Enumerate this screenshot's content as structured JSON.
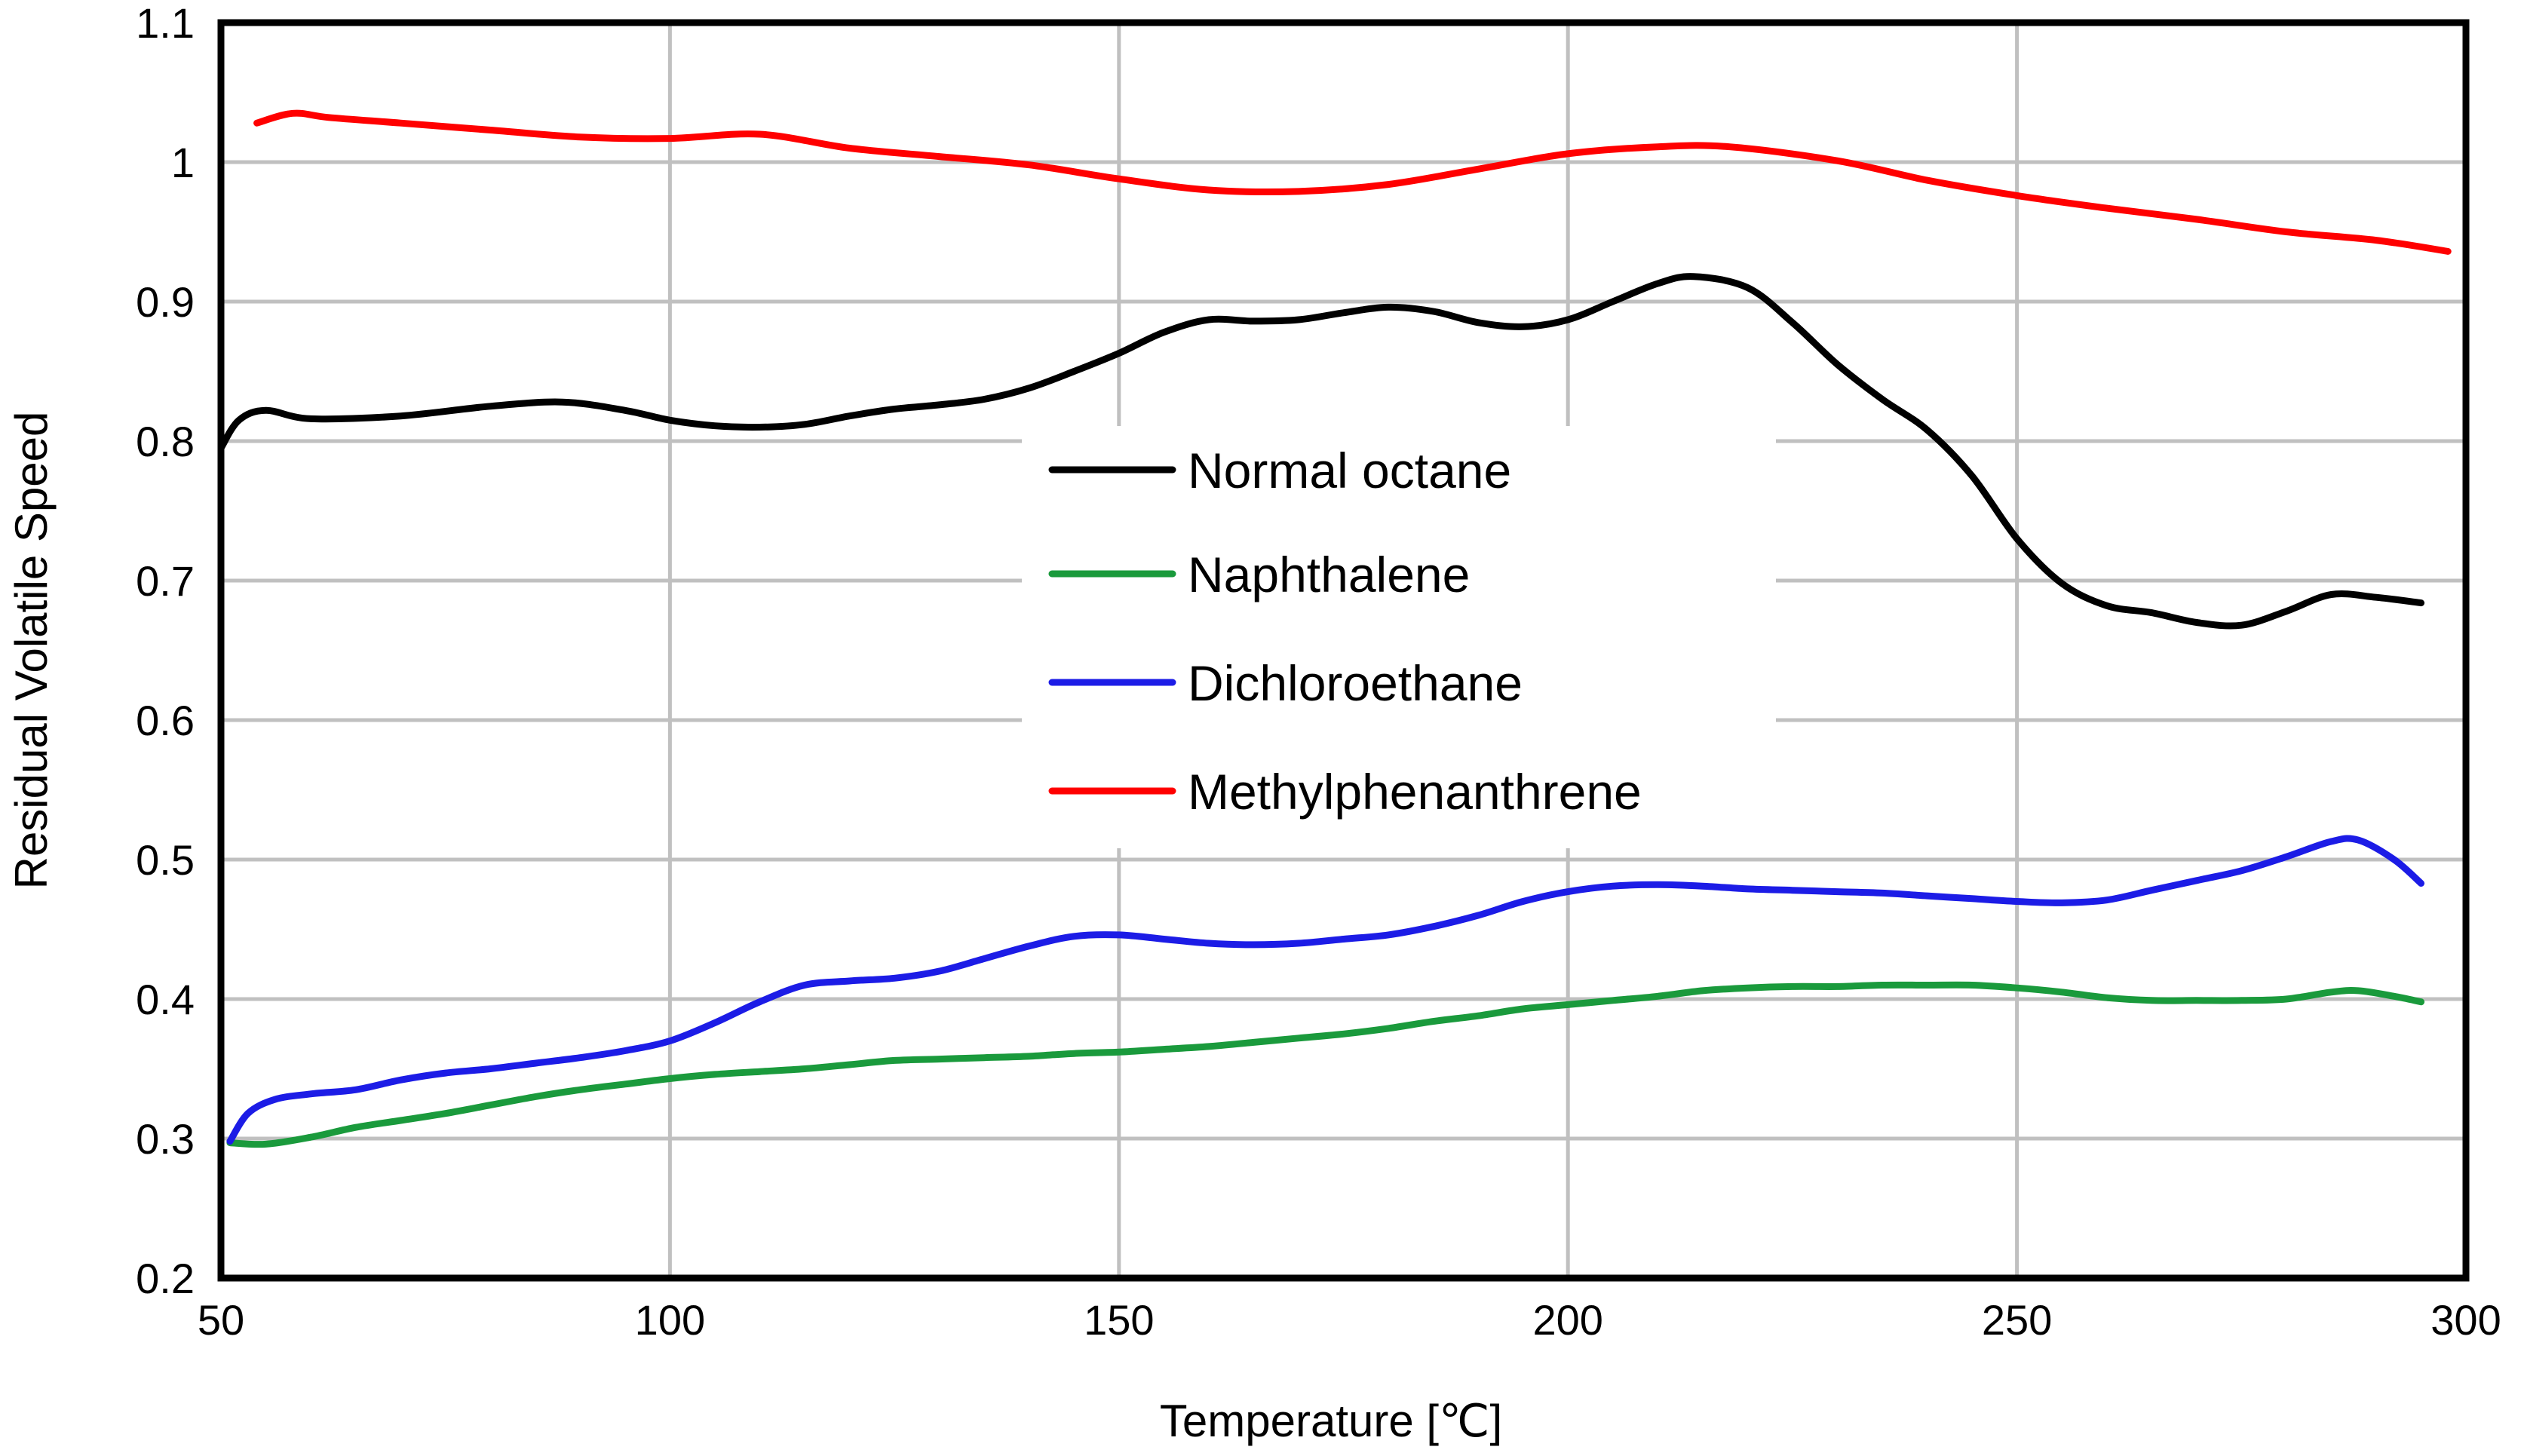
{
  "chart_data": {
    "type": "line",
    "title": "",
    "xlabel": "Temperature [℃]",
    "ylabel": "Residual Volatile Speed",
    "xlim": [
      50,
      300
    ],
    "ylim": [
      0.2,
      1.1
    ],
    "grid": true,
    "legend_position": "center",
    "x_ticks": [
      {
        "value": 50,
        "label": "50"
      },
      {
        "value": 100,
        "label": "100"
      },
      {
        "value": 150,
        "label": "150"
      },
      {
        "value": 200,
        "label": "200"
      },
      {
        "value": 250,
        "label": "250"
      },
      {
        "value": 300,
        "label": "300"
      }
    ],
    "y_ticks": [
      {
        "value": 0.2,
        "label": "0.2"
      },
      {
        "value": 0.3,
        "label": "0.3"
      },
      {
        "value": 0.4,
        "label": "0.4"
      },
      {
        "value": 0.5,
        "label": "0.5"
      },
      {
        "value": 0.6,
        "label": "0.6"
      },
      {
        "value": 0.7,
        "label": "0.7"
      },
      {
        "value": 0.8,
        "label": "0.8"
      },
      {
        "value": 0.9,
        "label": "0.9"
      },
      {
        "value": 1.0,
        "label": "1"
      },
      {
        "value": 1.1,
        "label": "1.1"
      }
    ],
    "series": [
      {
        "name": "Normal octane",
        "color": "#000000",
        "points": [
          [
            50,
            0.795
          ],
          [
            52,
            0.815
          ],
          [
            55,
            0.822
          ],
          [
            60,
            0.816
          ],
          [
            70,
            0.818
          ],
          [
            80,
            0.825
          ],
          [
            88,
            0.828
          ],
          [
            95,
            0.822
          ],
          [
            100,
            0.815
          ],
          [
            105,
            0.811
          ],
          [
            110,
            0.81
          ],
          [
            115,
            0.812
          ],
          [
            120,
            0.818
          ],
          [
            125,
            0.823
          ],
          [
            130,
            0.826
          ],
          [
            135,
            0.83
          ],
          [
            140,
            0.838
          ],
          [
            145,
            0.85
          ],
          [
            150,
            0.863
          ],
          [
            155,
            0.878
          ],
          [
            160,
            0.887
          ],
          [
            165,
            0.886
          ],
          [
            170,
            0.887
          ],
          [
            175,
            0.892
          ],
          [
            180,
            0.896
          ],
          [
            185,
            0.893
          ],
          [
            190,
            0.885
          ],
          [
            195,
            0.882
          ],
          [
            200,
            0.887
          ],
          [
            205,
            0.9
          ],
          [
            210,
            0.913
          ],
          [
            214,
            0.918
          ],
          [
            220,
            0.91
          ],
          [
            225,
            0.885
          ],
          [
            230,
            0.855
          ],
          [
            235,
            0.83
          ],
          [
            240,
            0.808
          ],
          [
            245,
            0.775
          ],
          [
            250,
            0.73
          ],
          [
            255,
            0.698
          ],
          [
            260,
            0.682
          ],
          [
            265,
            0.677
          ],
          [
            270,
            0.67
          ],
          [
            275,
            0.668
          ],
          [
            280,
            0.678
          ],
          [
            285,
            0.69
          ],
          [
            290,
            0.688
          ],
          [
            295,
            0.684
          ]
        ]
      },
      {
        "name": "Naphthalene",
        "color": "#1a9a3c",
        "points": [
          [
            51,
            0.297
          ],
          [
            55,
            0.296
          ],
          [
            60,
            0.301
          ],
          [
            65,
            0.308
          ],
          [
            70,
            0.313
          ],
          [
            75,
            0.318
          ],
          [
            80,
            0.324
          ],
          [
            85,
            0.33
          ],
          [
            90,
            0.335
          ],
          [
            95,
            0.339
          ],
          [
            100,
            0.343
          ],
          [
            105,
            0.346
          ],
          [
            110,
            0.348
          ],
          [
            115,
            0.35
          ],
          [
            120,
            0.353
          ],
          [
            125,
            0.356
          ],
          [
            130,
            0.357
          ],
          [
            135,
            0.358
          ],
          [
            140,
            0.359
          ],
          [
            145,
            0.361
          ],
          [
            150,
            0.362
          ],
          [
            155,
            0.364
          ],
          [
            160,
            0.366
          ],
          [
            165,
            0.369
          ],
          [
            170,
            0.372
          ],
          [
            175,
            0.375
          ],
          [
            180,
            0.379
          ],
          [
            185,
            0.384
          ],
          [
            190,
            0.388
          ],
          [
            195,
            0.393
          ],
          [
            200,
            0.396
          ],
          [
            205,
            0.399
          ],
          [
            210,
            0.402
          ],
          [
            215,
            0.406
          ],
          [
            220,
            0.408
          ],
          [
            225,
            0.409
          ],
          [
            230,
            0.409
          ],
          [
            235,
            0.41
          ],
          [
            240,
            0.41
          ],
          [
            245,
            0.41
          ],
          [
            250,
            0.408
          ],
          [
            255,
            0.405
          ],
          [
            260,
            0.401
          ],
          [
            265,
            0.399
          ],
          [
            270,
            0.399
          ],
          [
            275,
            0.399
          ],
          [
            280,
            0.4
          ],
          [
            285,
            0.405
          ],
          [
            288,
            0.406
          ],
          [
            292,
            0.402
          ],
          [
            295,
            0.398
          ]
        ]
      },
      {
        "name": "Dichloroethane",
        "color": "#1c1ce6",
        "points": [
          [
            51,
            0.298
          ],
          [
            53,
            0.318
          ],
          [
            56,
            0.328
          ],
          [
            60,
            0.332
          ],
          [
            65,
            0.335
          ],
          [
            70,
            0.342
          ],
          [
            75,
            0.347
          ],
          [
            80,
            0.35
          ],
          [
            85,
            0.354
          ],
          [
            90,
            0.358
          ],
          [
            95,
            0.363
          ],
          [
            100,
            0.37
          ],
          [
            105,
            0.383
          ],
          [
            110,
            0.398
          ],
          [
            115,
            0.41
          ],
          [
            120,
            0.413
          ],
          [
            125,
            0.415
          ],
          [
            130,
            0.42
          ],
          [
            135,
            0.429
          ],
          [
            140,
            0.438
          ],
          [
            145,
            0.445
          ],
          [
            150,
            0.446
          ],
          [
            155,
            0.443
          ],
          [
            160,
            0.44
          ],
          [
            165,
            0.439
          ],
          [
            170,
            0.44
          ],
          [
            175,
            0.443
          ],
          [
            180,
            0.446
          ],
          [
            185,
            0.452
          ],
          [
            190,
            0.46
          ],
          [
            195,
            0.47
          ],
          [
            200,
            0.477
          ],
          [
            205,
            0.481
          ],
          [
            210,
            0.482
          ],
          [
            215,
            0.481
          ],
          [
            220,
            0.479
          ],
          [
            225,
            0.478
          ],
          [
            230,
            0.477
          ],
          [
            235,
            0.476
          ],
          [
            240,
            0.474
          ],
          [
            245,
            0.472
          ],
          [
            250,
            0.47
          ],
          [
            255,
            0.469
          ],
          [
            260,
            0.471
          ],
          [
            265,
            0.478
          ],
          [
            270,
            0.485
          ],
          [
            275,
            0.492
          ],
          [
            280,
            0.502
          ],
          [
            285,
            0.513
          ],
          [
            288,
            0.514
          ],
          [
            292,
            0.5
          ],
          [
            295,
            0.483
          ]
        ]
      },
      {
        "name": "Methylphenanthrene",
        "color": "#ff0000",
        "points": [
          [
            54,
            1.028
          ],
          [
            58,
            1.035
          ],
          [
            62,
            1.032
          ],
          [
            70,
            1.028
          ],
          [
            80,
            1.023
          ],
          [
            90,
            1.018
          ],
          [
            100,
            1.017
          ],
          [
            110,
            1.02
          ],
          [
            120,
            1.01
          ],
          [
            130,
            1.004
          ],
          [
            140,
            0.998
          ],
          [
            150,
            0.988
          ],
          [
            160,
            0.98
          ],
          [
            170,
            0.979
          ],
          [
            180,
            0.984
          ],
          [
            190,
            0.995
          ],
          [
            200,
            1.006
          ],
          [
            210,
            1.011
          ],
          [
            218,
            1.011
          ],
          [
            230,
            1.001
          ],
          [
            240,
            0.987
          ],
          [
            250,
            0.976
          ],
          [
            260,
            0.967
          ],
          [
            270,
            0.959
          ],
          [
            280,
            0.95
          ],
          [
            290,
            0.944
          ],
          [
            298,
            0.936
          ]
        ]
      }
    ]
  }
}
